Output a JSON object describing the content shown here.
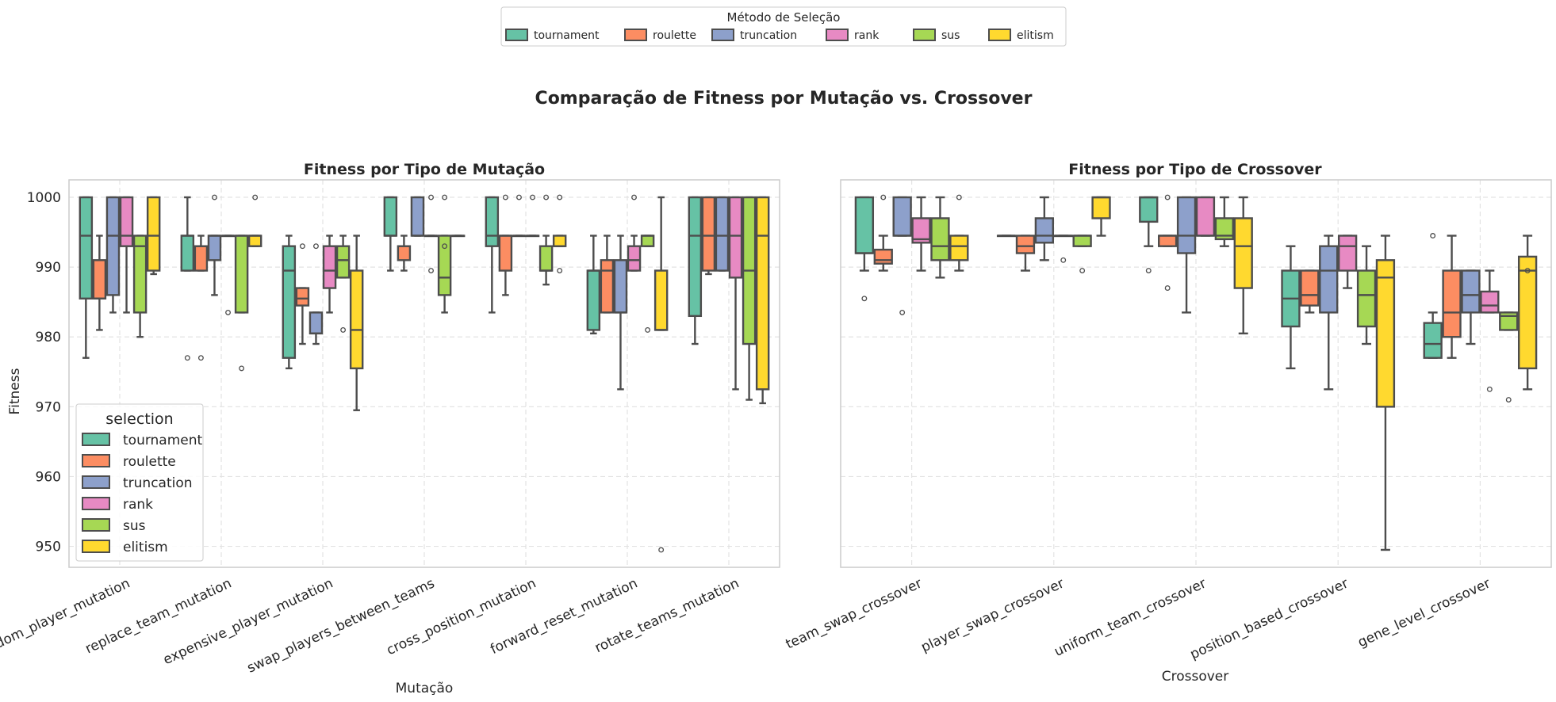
{
  "figure": {
    "suptitle": "Comparação de Fitness por Mutação vs. Crossover",
    "legend_title": "Método de Seleção",
    "inner_legend_title": "selection"
  },
  "selection_methods": [
    "tournament",
    "roulette",
    "truncation",
    "rank",
    "sus",
    "elitism"
  ],
  "colors": {
    "tournament": "#66c2a5",
    "roulette": "#fc8d62",
    "truncation": "#8da0cb",
    "rank": "#e78ac3",
    "sus": "#a6d854",
    "elitism": "#ffd92f",
    "box_edge": "#4d4d4d",
    "grid": "#e3e3e3",
    "spine": "#cccccc"
  },
  "chart_data": [
    {
      "type": "box",
      "title": "Fitness por Tipo de Mutação",
      "xlabel": "Mutação",
      "ylabel": "Fitness",
      "ylim": [
        947,
        1002.5
      ],
      "yticks": [
        "950",
        "960",
        "970",
        "980",
        "990",
        "1000"
      ],
      "legend": "lower-left",
      "grid": true,
      "categories": [
        "random_player_mutation",
        "replace_team_mutation",
        "expensive_player_mutation",
        "swap_players_between_teams",
        "cross_position_mutation",
        "forward_reset_mutation",
        "rotate_teams_mutation"
      ],
      "series": [
        {
          "name": "tournament",
          "boxes": [
            {
              "q1": 985.5,
              "median": 994.5,
              "q3": 1000,
              "wlo": 977,
              "whi": 1000,
              "fliers": []
            },
            {
              "q1": 989.5,
              "median": 994.5,
              "q3": 994.5,
              "wlo": 989.5,
              "whi": 1000,
              "fliers": [
                977
              ]
            },
            {
              "q1": 977,
              "median": 989.5,
              "q3": 993,
              "wlo": 975.5,
              "whi": 994.5,
              "fliers": []
            },
            {
              "q1": 994.5,
              "median": 994.5,
              "q3": 1000,
              "wlo": 989.5,
              "whi": 1000,
              "fliers": []
            },
            {
              "q1": 993,
              "median": 994.5,
              "q3": 1000,
              "wlo": 983.5,
              "whi": 1000,
              "fliers": []
            },
            {
              "q1": 981,
              "median": 989.5,
              "q3": 989.5,
              "wlo": 980.5,
              "whi": 994.5,
              "fliers": []
            },
            {
              "q1": 983,
              "median": 994.5,
              "q3": 1000,
              "wlo": 979,
              "whi": 1000,
              "fliers": []
            }
          ]
        },
        {
          "name": "roulette",
          "boxes": [
            {
              "q1": 985.5,
              "median": 985.5,
              "q3": 991,
              "wlo": 981,
              "whi": 994.5,
              "fliers": []
            },
            {
              "q1": 989.5,
              "median": 993,
              "q3": 993,
              "wlo": 989.5,
              "whi": 994.5,
              "fliers": [
                977
              ]
            },
            {
              "q1": 984.5,
              "median": 985.5,
              "q3": 987,
              "wlo": 979,
              "whi": 987,
              "fliers": [
                993
              ]
            },
            {
              "q1": 991,
              "median": 993,
              "q3": 993,
              "wlo": 989.5,
              "whi": 994.5,
              "fliers": []
            },
            {
              "q1": 989.5,
              "median": 994.5,
              "q3": 994.5,
              "wlo": 986,
              "whi": 994.5,
              "fliers": [
                1000
              ]
            },
            {
              "q1": 983.5,
              "median": 989.5,
              "q3": 991,
              "wlo": 983.5,
              "whi": 994.5,
              "fliers": []
            },
            {
              "q1": 989.5,
              "median": 994.5,
              "q3": 1000,
              "wlo": 989,
              "whi": 1000,
              "fliers": []
            }
          ]
        },
        {
          "name": "truncation",
          "boxes": [
            {
              "q1": 986,
              "median": 994.5,
              "q3": 1000,
              "wlo": 983.5,
              "whi": 1000,
              "fliers": []
            },
            {
              "q1": 991,
              "median": 994.5,
              "q3": 994.5,
              "wlo": 986,
              "whi": 994.5,
              "fliers": [
                1000
              ]
            },
            {
              "q1": 980.5,
              "median": 980.5,
              "q3": 983.5,
              "wlo": 979,
              "whi": 983.5,
              "fliers": [
                993
              ]
            },
            {
              "q1": 994.5,
              "median": 994.5,
              "q3": 1000,
              "wlo": 994.5,
              "whi": 1000,
              "fliers": []
            },
            {
              "q1": 994.5,
              "median": 994.5,
              "q3": 994.5,
              "wlo": 994.5,
              "whi": 994.5,
              "fliers": [
                1000
              ]
            },
            {
              "q1": 983.5,
              "median": 983.5,
              "q3": 991,
              "wlo": 972.5,
              "whi": 994.5,
              "fliers": []
            },
            {
              "q1": 989.5,
              "median": 994.5,
              "q3": 1000,
              "wlo": 989.5,
              "whi": 1000,
              "fliers": []
            }
          ]
        },
        {
          "name": "rank",
          "boxes": [
            {
              "q1": 993,
              "median": 994.5,
              "q3": 1000,
              "wlo": 983.5,
              "whi": 1000,
              "fliers": []
            },
            {
              "q1": 994.5,
              "median": 994.5,
              "q3": 994.5,
              "wlo": 994.5,
              "whi": 994.5,
              "fliers": [
                983.5
              ]
            },
            {
              "q1": 987,
              "median": 989.5,
              "q3": 993,
              "wlo": 983.5,
              "whi": 994.5,
              "fliers": []
            },
            {
              "q1": 994.5,
              "median": 994.5,
              "q3": 994.5,
              "wlo": 994.5,
              "whi": 994.5,
              "fliers": [
                989.5,
                1000
              ]
            },
            {
              "q1": 994.5,
              "median": 994.5,
              "q3": 994.5,
              "wlo": 994.5,
              "whi": 994.5,
              "fliers": [
                1000
              ]
            },
            {
              "q1": 989.5,
              "median": 991,
              "q3": 993,
              "wlo": 989.5,
              "whi": 994.5,
              "fliers": [
                1000
              ]
            },
            {
              "q1": 988.5,
              "median": 994.5,
              "q3": 1000,
              "wlo": 972.5,
              "whi": 1000,
              "fliers": []
            }
          ]
        },
        {
          "name": "sus",
          "boxes": [
            {
              "q1": 983.5,
              "median": 993,
              "q3": 994.5,
              "wlo": 980,
              "whi": 994.5,
              "fliers": []
            },
            {
              "q1": 983.5,
              "median": 994.5,
              "q3": 994.5,
              "wlo": 983.5,
              "whi": 994.5,
              "fliers": [
                975.5
              ]
            },
            {
              "q1": 988.5,
              "median": 991,
              "q3": 993,
              "wlo": 988.5,
              "whi": 994.5,
              "fliers": [
                981
              ]
            },
            {
              "q1": 986,
              "median": 988.5,
              "q3": 994.5,
              "wlo": 983.5,
              "whi": 994.5,
              "fliers": [
                993,
                1000
              ]
            },
            {
              "q1": 989.5,
              "median": 989.5,
              "q3": 993,
              "wlo": 987.5,
              "whi": 994.5,
              "fliers": [
                1000
              ]
            },
            {
              "q1": 993,
              "median": 994.5,
              "q3": 994.5,
              "wlo": 993,
              "whi": 994.5,
              "fliers": [
                981
              ]
            },
            {
              "q1": 979,
              "median": 989.5,
              "q3": 1000,
              "wlo": 971,
              "whi": 1000,
              "fliers": []
            }
          ]
        },
        {
          "name": "elitism",
          "boxes": [
            {
              "q1": 989.5,
              "median": 994.5,
              "q3": 1000,
              "wlo": 989,
              "whi": 1000,
              "fliers": []
            },
            {
              "q1": 993,
              "median": 994.5,
              "q3": 994.5,
              "wlo": 993,
              "whi": 994.5,
              "fliers": [
                1000
              ]
            },
            {
              "q1": 975.5,
              "median": 981,
              "q3": 989.5,
              "wlo": 969.5,
              "whi": 994.5,
              "fliers": []
            },
            {
              "q1": 994.5,
              "median": 994.5,
              "q3": 994.5,
              "wlo": 994.5,
              "whi": 994.5,
              "fliers": []
            },
            {
              "q1": 993,
              "median": 993,
              "q3": 994.5,
              "wlo": 993,
              "whi": 994.5,
              "fliers": [
                989.5,
                1000
              ]
            },
            {
              "q1": 981,
              "median": 981,
              "q3": 989.5,
              "wlo": 981,
              "whi": 1000,
              "fliers": [
                949.5
              ]
            },
            {
              "q1": 972.5,
              "median": 994.5,
              "q3": 1000,
              "wlo": 970.5,
              "whi": 1000,
              "fliers": []
            }
          ]
        }
      ]
    },
    {
      "type": "box",
      "title": "Fitness por Tipo de Crossover",
      "xlabel": "Crossover",
      "ylabel": "",
      "ylim": [
        947,
        1002.5
      ],
      "legend": "none",
      "grid": true,
      "categories": [
        "team_swap_crossover",
        "player_swap_crossover",
        "uniform_team_crossover",
        "position_based_crossover",
        "gene_level_crossover"
      ],
      "series": [
        {
          "name": "tournament",
          "boxes": [
            {
              "q1": 992,
              "median": 992,
              "q3": 1000,
              "wlo": 989.5,
              "whi": 1000,
              "fliers": [
                985.5
              ]
            },
            {
              "q1": 994.5,
              "median": 994.5,
              "q3": 994.5,
              "wlo": 994.5,
              "whi": 994.5,
              "fliers": []
            },
            {
              "q1": 996.5,
              "median": 1000,
              "q3": 1000,
              "wlo": 993,
              "whi": 1000,
              "fliers": [
                989.5
              ]
            },
            {
              "q1": 981.5,
              "median": 985.5,
              "q3": 989.5,
              "wlo": 975.5,
              "whi": 993,
              "fliers": []
            },
            {
              "q1": 977,
              "median": 979,
              "q3": 982,
              "wlo": 977,
              "whi": 983.5,
              "fliers": [
                994.5
              ]
            }
          ]
        },
        {
          "name": "roulette",
          "boxes": [
            {
              "q1": 990.5,
              "median": 991,
              "q3": 992.5,
              "wlo": 989.5,
              "whi": 994.5,
              "fliers": [
                1000
              ]
            },
            {
              "q1": 992,
              "median": 993,
              "q3": 994.5,
              "wlo": 989.5,
              "whi": 994.5,
              "fliers": []
            },
            {
              "q1": 993,
              "median": 994.5,
              "q3": 994.5,
              "wlo": 993,
              "whi": 994.5,
              "fliers": [
                1000,
                987
              ]
            },
            {
              "q1": 984.5,
              "median": 986,
              "q3": 989.5,
              "wlo": 983.5,
              "whi": 989.5,
              "fliers": []
            },
            {
              "q1": 980,
              "median": 983.5,
              "q3": 989.5,
              "wlo": 977,
              "whi": 994.5,
              "fliers": []
            }
          ]
        },
        {
          "name": "truncation",
          "boxes": [
            {
              "q1": 994.5,
              "median": 994.5,
              "q3": 1000,
              "wlo": 994.5,
              "whi": 1000,
              "fliers": [
                983.5
              ]
            },
            {
              "q1": 993.5,
              "median": 994.5,
              "q3": 997,
              "wlo": 991,
              "whi": 1000,
              "fliers": []
            },
            {
              "q1": 992,
              "median": 994.5,
              "q3": 1000,
              "wlo": 983.5,
              "whi": 1000,
              "fliers": []
            },
            {
              "q1": 983.5,
              "median": 989.5,
              "q3": 993,
              "wlo": 972.5,
              "whi": 994.5,
              "fliers": []
            },
            {
              "q1": 983.5,
              "median": 986,
              "q3": 989.5,
              "wlo": 979,
              "whi": 989.5,
              "fliers": []
            }
          ]
        },
        {
          "name": "rank",
          "boxes": [
            {
              "q1": 993.5,
              "median": 994,
              "q3": 997,
              "wlo": 989.5,
              "whi": 1000,
              "fliers": []
            },
            {
              "q1": 994.5,
              "median": 994.5,
              "q3": 994.5,
              "wlo": 994.5,
              "whi": 994.5,
              "fliers": [
                991
              ]
            },
            {
              "q1": 994.5,
              "median": 994.5,
              "q3": 1000,
              "wlo": 994.5,
              "whi": 1000,
              "fliers": []
            },
            {
              "q1": 989.5,
              "median": 993,
              "q3": 994.5,
              "wlo": 987,
              "whi": 994.5,
              "fliers": []
            },
            {
              "q1": 983.5,
              "median": 984.5,
              "q3": 986.5,
              "wlo": 983.5,
              "whi": 989.5,
              "fliers": [
                972.5
              ]
            }
          ]
        },
        {
          "name": "sus",
          "boxes": [
            {
              "q1": 991,
              "median": 993,
              "q3": 997,
              "wlo": 988.5,
              "whi": 1000,
              "fliers": []
            },
            {
              "q1": 993,
              "median": 994.5,
              "q3": 994.5,
              "wlo": 993,
              "whi": 994.5,
              "fliers": [
                989.5
              ]
            },
            {
              "q1": 994,
              "median": 994.5,
              "q3": 997,
              "wlo": 993,
              "whi": 1000,
              "fliers": []
            },
            {
              "q1": 981.5,
              "median": 986,
              "q3": 989.5,
              "wlo": 979,
              "whi": 993,
              "fliers": []
            },
            {
              "q1": 981,
              "median": 983,
              "q3": 983.5,
              "wlo": 981,
              "whi": 983.5,
              "fliers": [
                971
              ]
            }
          ]
        },
        {
          "name": "elitism",
          "boxes": [
            {
              "q1": 991,
              "median": 993,
              "q3": 994.5,
              "wlo": 989.5,
              "whi": 994.5,
              "fliers": [
                1000
              ]
            },
            {
              "q1": 997,
              "median": 1000,
              "q3": 1000,
              "wlo": 994.5,
              "whi": 1000,
              "fliers": []
            },
            {
              "q1": 987,
              "median": 993,
              "q3": 997,
              "wlo": 980.5,
              "whi": 1000,
              "fliers": []
            },
            {
              "q1": 970,
              "median": 988.5,
              "q3": 991,
              "wlo": 949.5,
              "whi": 994.5,
              "fliers": []
            },
            {
              "q1": 975.5,
              "median": 989.5,
              "q3": 991.5,
              "wlo": 972.5,
              "whi": 994.5,
              "fliers": [
                989.5
              ]
            }
          ]
        }
      ]
    }
  ]
}
